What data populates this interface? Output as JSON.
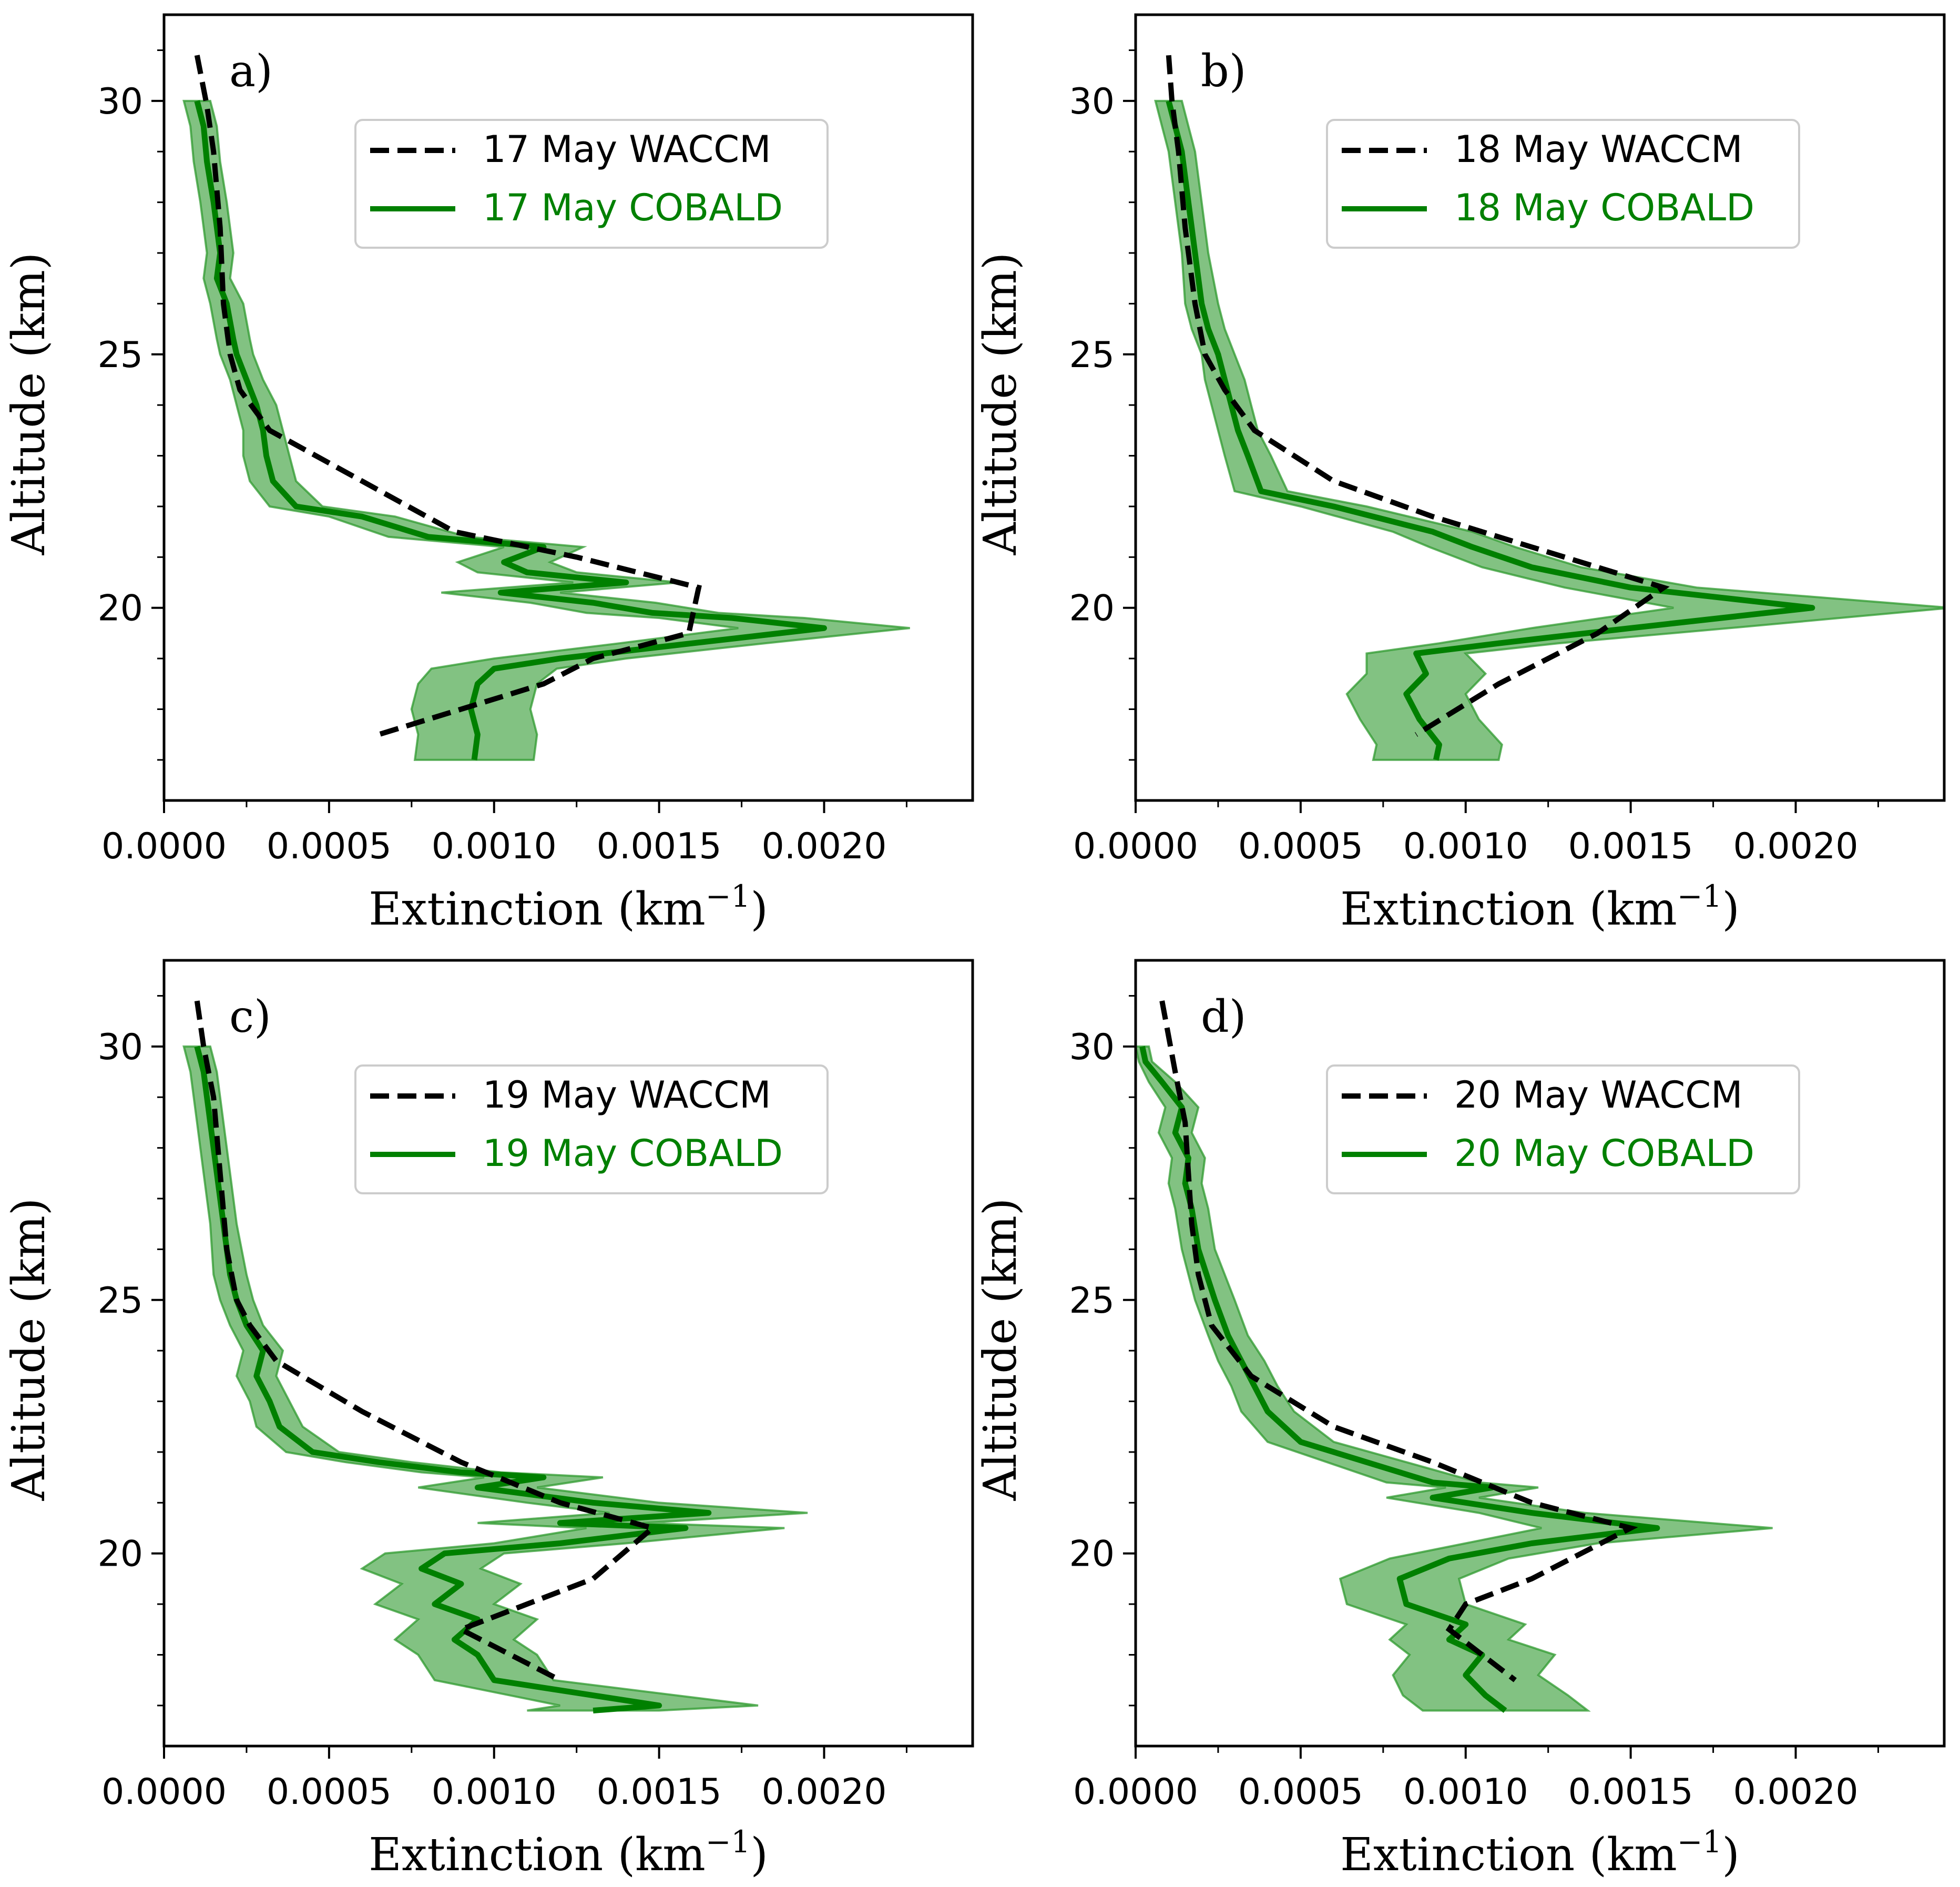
{
  "figure": {
    "colors": {
      "waccm": "#000000",
      "cobald": "#008000",
      "band": "#2e9a2e"
    }
  },
  "chart_data": [
    {
      "type": "line",
      "panel_label": "a)",
      "xlabel": "Extinction (km",
      "xlabel_sup": "−1",
      "xlabel_close": ")",
      "ylabel": "Altitude (km)",
      "xlim": [
        0,
        0.00245
      ],
      "ylim": [
        16.2,
        31.7
      ],
      "xticks": [
        0,
        0.0005,
        0.001,
        0.0015,
        0.002
      ],
      "xtick_labels": [
        "0.0000",
        "0.0005",
        "0.0010",
        "0.0015",
        "0.0020"
      ],
      "yticks": [
        20,
        25,
        30
      ],
      "ytick_labels": [
        "20",
        "25",
        "30"
      ],
      "legend": {
        "waccm": "17 May WACCM",
        "cobald": "17 May COBALD"
      },
      "series": [
        {
          "name": "17 May WACCM",
          "style": "dashed",
          "x": [
            0.0001,
            0.00013,
            0.00015,
            0.00017,
            0.00018,
            0.0002,
            0.00023,
            0.00032,
            0.0006,
            0.00088,
            0.00125,
            0.00162,
            0.00159,
            0.0013,
            0.00115,
            0.0009,
            0.00065
          ],
          "y": [
            30.9,
            29.9,
            29.0,
            27.5,
            26.0,
            25.0,
            24.3,
            23.5,
            22.5,
            21.5,
            21.0,
            20.4,
            19.5,
            19.0,
            18.5,
            18.0,
            17.5
          ]
        },
        {
          "name": "17 May COBALD",
          "style": "solid",
          "x": [
            0.0001,
            0.00012,
            0.00013,
            0.00015,
            0.00017,
            0.00016,
            0.00019,
            0.00021,
            0.00022,
            0.00025,
            0.00028,
            0.0003,
            0.00031,
            0.00033,
            0.0004,
            0.0006,
            0.0008,
            0.00115,
            0.00103,
            0.0011,
            0.0014,
            0.00102,
            0.0013,
            0.00148,
            0.00172,
            0.002,
            0.0016,
            0.0012,
            0.001,
            0.00095,
            0.00093,
            0.00095,
            0.00094
          ],
          "y": [
            30.0,
            29.5,
            28.8,
            28.0,
            27.0,
            26.5,
            26.0,
            25.3,
            25.0,
            24.5,
            24.0,
            23.5,
            23.0,
            22.5,
            22.0,
            21.8,
            21.4,
            21.2,
            20.9,
            20.7,
            20.5,
            20.3,
            20.1,
            19.9,
            19.8,
            19.6,
            19.3,
            19.0,
            18.8,
            18.5,
            18.0,
            17.5,
            17.0
          ]
        }
      ],
      "band_halfwidth": [
        4e-05,
        4e-05,
        4e-05,
        4e-05,
        4e-05,
        4e-05,
        5e-05,
        5e-05,
        5e-05,
        5e-05,
        6e-05,
        6e-05,
        7e-05,
        7e-05,
        8e-05,
        0.0001,
        0.00012,
        0.00012,
        0.00014,
        0.00015,
        0.00016,
        0.00018,
        0.00019,
        0.0002,
        0.00022,
        0.00026,
        0.00022,
        0.0002,
        0.00019,
        0.00018,
        0.00018,
        0.00018,
        0.00018
      ]
    },
    {
      "type": "line",
      "panel_label": "b)",
      "xlabel": "Extinction (km",
      "xlabel_sup": "−1",
      "xlabel_close": ")",
      "ylabel": "Altitude (km)",
      "xlim": [
        0,
        0.00245
      ],
      "ylim": [
        16.2,
        31.7
      ],
      "xticks": [
        0,
        0.0005,
        0.001,
        0.0015,
        0.002
      ],
      "xtick_labels": [
        "0.0000",
        "0.0005",
        "0.0010",
        "0.0015",
        "0.0020"
      ],
      "yticks": [
        20,
        25,
        30
      ],
      "ytick_labels": [
        "20",
        "25",
        "30"
      ],
      "legend": {
        "waccm": "18 May WACCM",
        "cobald": "18 May COBALD"
      },
      "series": [
        {
          "name": "18 May WACCM",
          "style": "dashed",
          "x": [
            0.0001,
            0.00011,
            0.00013,
            0.00015,
            0.00018,
            0.00021,
            0.00027,
            0.00036,
            0.0006,
            0.0009,
            0.0012,
            0.0016,
            0.0014,
            0.0011,
            0.00085
          ],
          "y": [
            30.9,
            30.0,
            29.0,
            27.5,
            26.0,
            25.0,
            24.3,
            23.5,
            22.5,
            21.8,
            21.2,
            20.4,
            19.5,
            18.5,
            17.5
          ]
        },
        {
          "name": "18 May COBALD",
          "style": "solid",
          "x": [
            0.0001,
            0.00012,
            0.00014,
            0.00016,
            0.00018,
            0.0002,
            0.00022,
            0.00025,
            0.00027,
            0.00029,
            0.00031,
            0.00034,
            0.00038,
            0.0006,
            0.0009,
            0.00102,
            0.0012,
            0.0015,
            0.00205,
            0.0015,
            0.0011,
            0.00085,
            0.00088,
            0.00082,
            0.00086,
            0.00092,
            0.00091
          ],
          "y": [
            30.0,
            29.5,
            29.0,
            28.0,
            27.0,
            26.0,
            25.5,
            25.0,
            24.5,
            24.0,
            23.5,
            23.0,
            22.3,
            22.0,
            21.5,
            21.2,
            20.8,
            20.4,
            20.0,
            19.6,
            19.3,
            19.1,
            18.7,
            18.3,
            17.8,
            17.3,
            17.0
          ]
        }
      ],
      "band_halfwidth": [
        4e-05,
        4e-05,
        4e-05,
        4e-05,
        4e-05,
        5e-05,
        5e-05,
        5e-05,
        6e-05,
        6e-05,
        6e-05,
        7e-05,
        8e-05,
        0.0001,
        0.00012,
        0.00013,
        0.00015,
        0.0002,
        0.00042,
        0.0003,
        0.00018,
        0.00015,
        0.00018,
        0.00018,
        0.00018,
        0.00019,
        0.00019
      ]
    },
    {
      "type": "line",
      "panel_label": "c)",
      "xlabel": "Extinction (km",
      "xlabel_sup": "−1",
      "xlabel_close": ")",
      "ylabel": "Altitude (km)",
      "xlim": [
        0,
        0.00245
      ],
      "ylim": [
        16.2,
        31.7
      ],
      "xticks": [
        0,
        0.0005,
        0.001,
        0.0015,
        0.002
      ],
      "xtick_labels": [
        "0.0000",
        "0.0005",
        "0.0010",
        "0.0015",
        "0.0020"
      ],
      "yticks": [
        20,
        25,
        30
      ],
      "ytick_labels": [
        "20",
        "25",
        "30"
      ],
      "legend": {
        "waccm": "19 May WACCM",
        "cobald": "19 May COBALD"
      },
      "series": [
        {
          "name": "19 May WACCM",
          "style": "dashed",
          "x": [
            0.0001,
            0.00012,
            0.00015,
            0.00017,
            0.00019,
            0.00022,
            0.00026,
            0.00034,
            0.0006,
            0.0009,
            0.0012,
            0.00148,
            0.0013,
            0.0011,
            0.0009,
            0.0012
          ],
          "y": [
            30.9,
            30.0,
            29.0,
            27.5,
            26.0,
            25.0,
            24.5,
            23.8,
            22.8,
            21.8,
            21.0,
            20.5,
            19.5,
            19.0,
            18.5,
            17.5
          ]
        },
        {
          "name": "19 May COBALD",
          "style": "solid",
          "x": [
            0.0001,
            0.00012,
            0.00014,
            0.00016,
            0.00018,
            0.0002,
            0.00022,
            0.00025,
            0.0003,
            0.00028,
            0.00032,
            0.00035,
            0.00045,
            0.00065,
            0.0009,
            0.00115,
            0.00095,
            0.0013,
            0.00165,
            0.0012,
            0.00158,
            0.0012,
            0.00085,
            0.00078,
            0.0009,
            0.00082,
            0.00095,
            0.00088,
            0.00095,
            0.001,
            0.0015,
            0.0013
          ],
          "y": [
            30.0,
            29.5,
            28.5,
            27.5,
            26.5,
            25.5,
            25.0,
            24.5,
            24.0,
            23.5,
            23.0,
            22.5,
            22.0,
            21.8,
            21.6,
            21.5,
            21.3,
            21.0,
            20.8,
            20.6,
            20.5,
            20.2,
            20.0,
            19.7,
            19.4,
            19.0,
            18.7,
            18.3,
            18.0,
            17.5,
            17.0,
            16.9
          ]
        }
      ],
      "band_halfwidth": [
        4e-05,
        4e-05,
        4e-05,
        4e-05,
        4e-05,
        5e-05,
        5e-05,
        5e-05,
        6e-05,
        6e-05,
        6e-05,
        7e-05,
        8e-05,
        0.0001,
        0.00012,
        0.00018,
        0.00018,
        0.0002,
        0.0003,
        0.00025,
        0.0003,
        0.0002,
        0.00018,
        0.00018,
        0.00018,
        0.00018,
        0.00018,
        0.00018,
        0.00018,
        0.00018,
        0.0003,
        0.0002
      ]
    },
    {
      "type": "line",
      "panel_label": "d)",
      "xlabel": "Extinction (km",
      "xlabel_sup": "−1",
      "xlabel_close": ")",
      "ylabel": "Altitude (km)",
      "xlim": [
        0,
        0.00245
      ],
      "ylim": [
        16.2,
        31.7
      ],
      "xticks": [
        0,
        0.0005,
        0.001,
        0.0015,
        0.002
      ],
      "xtick_labels": [
        "0.0000",
        "0.0005",
        "0.0010",
        "0.0015",
        "0.0020"
      ],
      "yticks": [
        20,
        25,
        30
      ],
      "ytick_labels": [
        "20",
        "25",
        "30"
      ],
      "legend": {
        "waccm": "20 May WACCM",
        "cobald": "20 May COBALD"
      },
      "series": [
        {
          "name": "20 May WACCM",
          "style": "dashed",
          "x": [
            8e-05,
            0.00012,
            0.00015,
            0.00016,
            0.00017,
            0.00019,
            0.00023,
            0.00035,
            0.0006,
            0.0009,
            0.0012,
            0.0015,
            0.0012,
            0.001,
            0.00095,
            0.00115
          ],
          "y": [
            30.9,
            29.5,
            28.5,
            27.5,
            26.5,
            25.5,
            24.5,
            23.5,
            22.5,
            21.8,
            21.0,
            20.5,
            19.5,
            19.0,
            18.5,
            17.5
          ]
        },
        {
          "name": "20 May COBALD",
          "style": "solid",
          "x": [
            2e-05,
            3e-05,
            8e-05,
            0.00014,
            0.00012,
            0.00016,
            0.00015,
            0.00017,
            0.00019,
            0.00024,
            0.00028,
            0.00032,
            0.00036,
            0.0004,
            0.0005,
            0.0007,
            0.0009,
            0.00108,
            0.0009,
            0.0012,
            0.00158,
            0.0012,
            0.00095,
            0.0008,
            0.00082,
            0.001,
            0.00095,
            0.00105,
            0.001,
            0.00106,
            0.00112
          ],
          "y": [
            30.0,
            29.7,
            29.3,
            28.8,
            28.3,
            27.8,
            27.3,
            26.8,
            26.0,
            25.0,
            24.3,
            23.8,
            23.3,
            22.8,
            22.2,
            21.8,
            21.4,
            21.3,
            21.1,
            20.8,
            20.5,
            20.2,
            19.9,
            19.5,
            19.0,
            18.6,
            18.3,
            18.0,
            17.6,
            17.2,
            16.9
          ]
        }
      ],
      "band_halfwidth": [
        2e-05,
        2e-05,
        4e-05,
        5e-05,
        5e-05,
        5e-05,
        5e-05,
        5e-05,
        5e-05,
        6e-05,
        6e-05,
        7e-05,
        7e-05,
        8e-05,
        0.0001,
        0.00012,
        0.00014,
        0.00014,
        0.00014,
        0.00016,
        0.00035,
        0.0002,
        0.00018,
        0.00018,
        0.00018,
        0.00018,
        0.00018,
        0.00022,
        0.00022,
        0.00025,
        0.00025
      ]
    }
  ]
}
